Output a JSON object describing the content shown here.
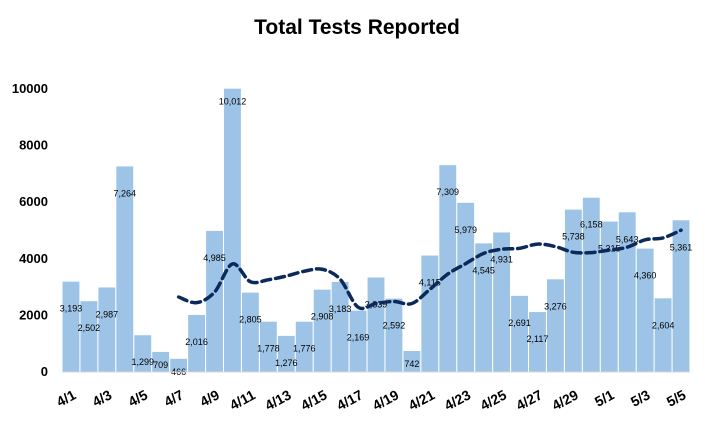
{
  "chart_data": {
    "type": "bar",
    "title": "Total Tests Reported",
    "xlabel": "",
    "ylabel": "",
    "ylim": [
      0,
      10000
    ],
    "yticks": [
      0,
      2000,
      4000,
      6000,
      8000,
      10000
    ],
    "ytick_labels": [
      "0",
      "2000",
      "4000",
      "6000",
      "8000",
      "10000"
    ],
    "categories": [
      "4/1",
      "4/2",
      "4/3",
      "4/4",
      "4/5",
      "4/6",
      "4/7",
      "4/8",
      "4/9",
      "4/10",
      "4/11",
      "4/12",
      "4/13",
      "4/14",
      "4/15",
      "4/16",
      "4/17",
      "4/18",
      "4/19",
      "4/20",
      "4/21",
      "4/22",
      "4/23",
      "4/24",
      "4/25",
      "4/26",
      "4/27",
      "4/28",
      "4/29",
      "4/30",
      "5/1",
      "5/2",
      "5/3",
      "5/4",
      "5/5"
    ],
    "xtick_labels_shown": [
      "4/1",
      "",
      "4/3",
      "",
      "4/5",
      "",
      "4/7",
      "",
      "4/9",
      "",
      "4/11",
      "",
      "4/13",
      "",
      "4/15",
      "",
      "4/17",
      "",
      "4/19",
      "",
      "4/21",
      "",
      "4/23",
      "",
      "4/25",
      "",
      "4/27",
      "",
      "4/29",
      "",
      "5/1",
      "",
      "5/3",
      "",
      "5/5"
    ],
    "series": [
      {
        "values": [
          3193,
          2502,
          2987,
          7264,
          1299,
          709,
          466,
          2016,
          4985,
          10012,
          2805,
          1778,
          1276,
          1776,
          2908,
          3183,
          2169,
          3339,
          2592,
          742,
          4115,
          7309,
          5979,
          4545,
          4931,
          2691,
          2117,
          3276,
          5738,
          6158,
          5315,
          5643,
          4360,
          2604,
          5361
        ],
        "data_labels": [
          "3,193",
          "2,502",
          "2,987",
          "7,264",
          "1,299",
          "709",
          "466",
          "2,016",
          "4,985",
          "10,012",
          "2,805",
          "1,778",
          "1,276",
          "1,776",
          "2,908",
          "3,183",
          "2,169",
          "3,339",
          "2,592",
          "742",
          "4,115",
          "7,309",
          "5,979",
          "4,545",
          "4,931",
          "2,691",
          "2,117",
          "3,276",
          "5,738",
          "6,158",
          "5,315",
          "5,643",
          "4,360",
          "2,604",
          "5,361"
        ],
        "color": "#9dc3e6"
      },
      {
        "type": "line",
        "style": "dashed",
        "color": "#0b2a5b",
        "values": [
          null,
          null,
          null,
          null,
          null,
          null,
          2650,
          2450,
          2820,
          3820,
          3190,
          3260,
          3390,
          3560,
          3630,
          3280,
          2290,
          2420,
          2490,
          2420,
          2920,
          3460,
          3830,
          4190,
          4340,
          4370,
          4520,
          4430,
          4230,
          4220,
          4310,
          4410,
          4670,
          4740,
          5010
        ]
      }
    ],
    "grid": false,
    "legend": "none"
  }
}
